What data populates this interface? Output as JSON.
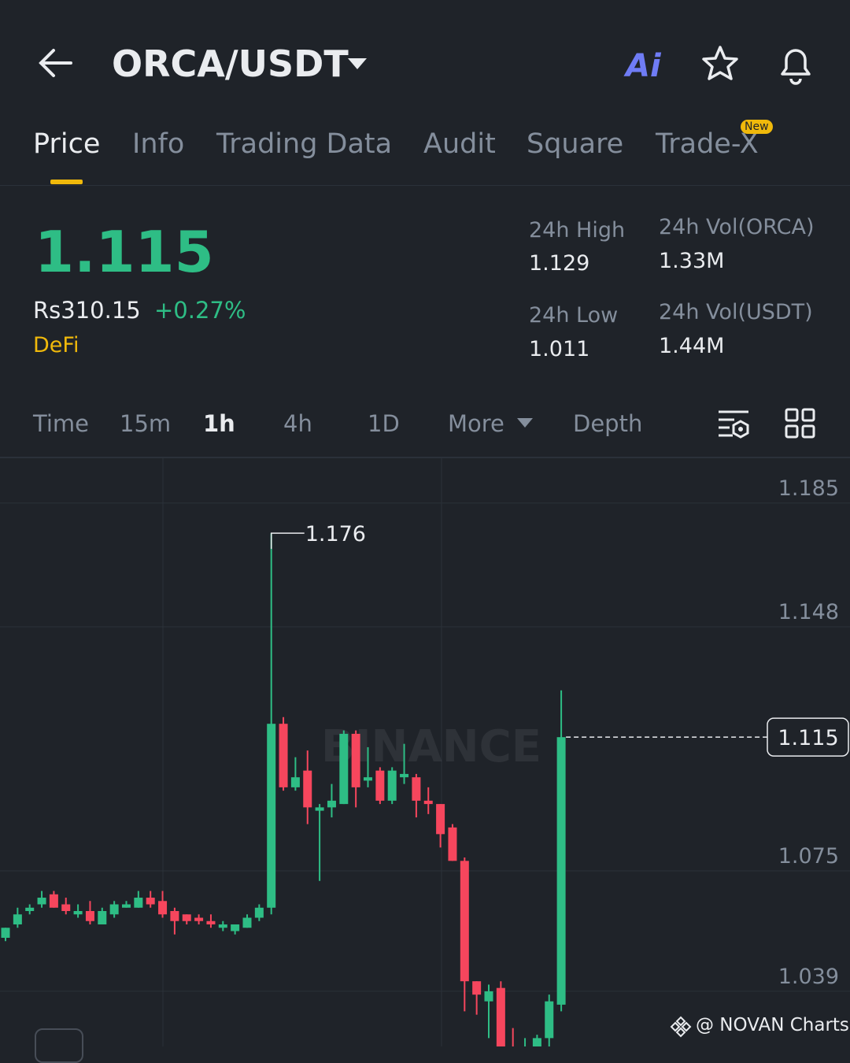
{
  "header": {
    "pair": "ORCA/USDT",
    "ai": "Ai"
  },
  "tabs": [
    "Price",
    "Info",
    "Trading Data",
    "Audit",
    "Square",
    "Trade-X"
  ],
  "new_badge": "New",
  "summary": {
    "last_price": "1.115",
    "fiat": "Rs310.15",
    "change": "+0.27%",
    "tag": "DeFi",
    "stats": [
      {
        "label": "24h High",
        "value": "1.129"
      },
      {
        "label": "24h Vol(ORCA)",
        "value": "1.33M"
      },
      {
        "label": "24h Low",
        "value": "1.011"
      },
      {
        "label": "24h Vol(USDT)",
        "value": "1.44M"
      }
    ]
  },
  "intervals": [
    "Time",
    "15m",
    "1h",
    "4h",
    "1D",
    "More",
    "Depth"
  ],
  "chart_data": {
    "type": "candlestick",
    "categories": [
      null,
      null,
      null,
      null,
      null,
      null,
      null,
      null,
      null,
      null,
      null,
      null,
      null,
      null,
      null,
      null,
      null,
      null,
      null,
      null,
      null,
      null,
      null,
      null,
      null,
      null,
      null,
      null,
      null,
      null,
      null,
      null,
      null,
      null,
      null,
      null,
      null,
      null,
      null,
      null,
      null,
      null,
      null,
      null,
      null,
      null,
      null
    ],
    "open": [
      1.055,
      1.059,
      1.063,
      1.065,
      1.068,
      1.065,
      1.062,
      1.063,
      1.059,
      1.062,
      1.064,
      1.064,
      1.067,
      1.066,
      1.063,
      1.062,
      1.061,
      1.06,
      1.058,
      1.057,
      1.058,
      1.061,
      1.064,
      1.119,
      1.1,
      1.105,
      1.093,
      1.094,
      1.095,
      1.116,
      1.102,
      1.105,
      1.096,
      1.103,
      1.103,
      1.096,
      1.095,
      1.088,
      1.078,
      1.042,
      1.036,
      1.04,
      1.02,
      1.016,
      1.018,
      1.025,
      1.035
    ],
    "high": [
      1.058,
      1.064,
      1.065,
      1.069,
      1.069,
      1.067,
      1.065,
      1.066,
      1.064,
      1.066,
      1.066,
      1.069,
      1.069,
      1.069,
      1.064,
      1.062,
      1.062,
      1.062,
      1.06,
      1.059,
      1.062,
      1.065,
      1.176,
      1.121,
      1.109,
      1.111,
      1.095,
      1.101,
      1.117,
      1.117,
      1.112,
      1.106,
      1.106,
      1.113,
      1.104,
      1.1,
      1.095,
      1.089,
      1.079,
      1.042,
      1.041,
      1.042,
      1.028,
      1.025,
      1.026,
      1.038,
      1.129
    ],
    "low": [
      1.054,
      1.058,
      1.062,
      1.064,
      1.064,
      1.062,
      1.061,
      1.059,
      1.059,
      1.061,
      1.064,
      1.064,
      1.064,
      1.061,
      1.056,
      1.059,
      1.059,
      1.058,
      1.057,
      1.056,
      1.058,
      1.06,
      1.062,
      1.099,
      1.099,
      1.089,
      1.072,
      1.091,
      1.095,
      1.094,
      1.1,
      1.095,
      1.095,
      1.101,
      1.091,
      1.092,
      1.082,
      1.078,
      1.033,
      1.032,
      1.025,
      1.011,
      1.011,
      1.011,
      1.015,
      1.02,
      1.033
    ],
    "close": [
      1.058,
      1.062,
      1.064,
      1.067,
      1.064,
      1.063,
      1.063,
      1.06,
      1.063,
      1.065,
      1.065,
      1.067,
      1.065,
      1.062,
      1.06,
      1.06,
      1.06,
      1.059,
      1.059,
      1.059,
      1.061,
      1.064,
      1.119,
      1.1,
      1.103,
      1.094,
      1.094,
      1.096,
      1.116,
      1.1,
      1.103,
      1.096,
      1.105,
      1.104,
      1.096,
      1.095,
      1.086,
      1.078,
      1.042,
      1.038,
      1.039,
      1.02,
      1.015,
      1.018,
      1.025,
      1.036,
      1.115
    ],
    "up_color": "#2ebd85",
    "down_color": "#f6465d",
    "ylim": [
      1.0225,
      1.1984
    ],
    "yticks": [
      1.039,
      1.075,
      1.148,
      1.185
    ],
    "grid": true,
    "current_price": 1.115,
    "max_annotation": 1.176
  },
  "watermark": "BINANCE",
  "footer": "@ NOVAN Charts"
}
